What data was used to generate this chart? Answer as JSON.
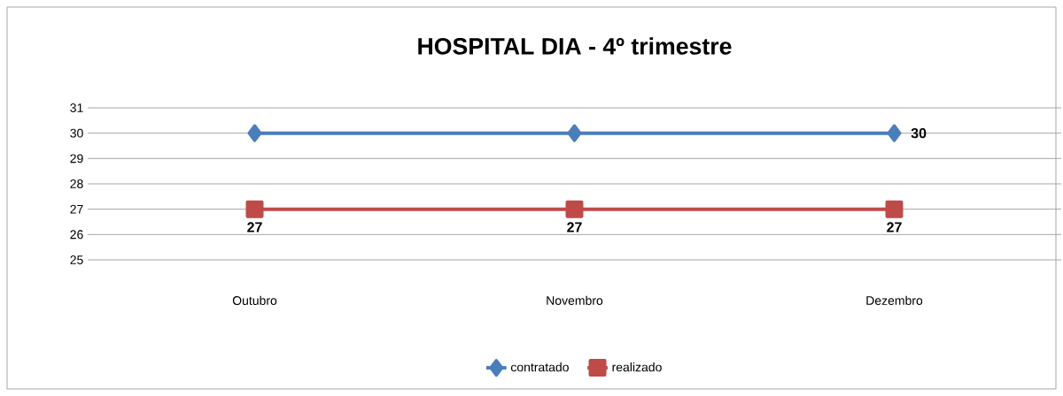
{
  "chart_data": {
    "type": "line",
    "title": "HOSPITAL DIA - 4º trimestre",
    "categories": [
      "Outubro",
      "Novembro",
      "Dezembro"
    ],
    "series": [
      {
        "name": "contratado",
        "color": "#4a7ebb",
        "marker": "diamond",
        "values": [
          30,
          30,
          30
        ],
        "value_labels": [
          null,
          null,
          "30"
        ]
      },
      {
        "name": "realizado",
        "color": "#be4b48",
        "marker": "square",
        "values": [
          27,
          27,
          27
        ],
        "value_labels": [
          "27",
          "27",
          "27"
        ]
      }
    ],
    "ylim": [
      25,
      31
    ],
    "yticks": [
      25,
      26,
      27,
      28,
      29,
      30,
      31
    ],
    "grid": "y",
    "legend": "bottom",
    "line_style": "solid"
  }
}
